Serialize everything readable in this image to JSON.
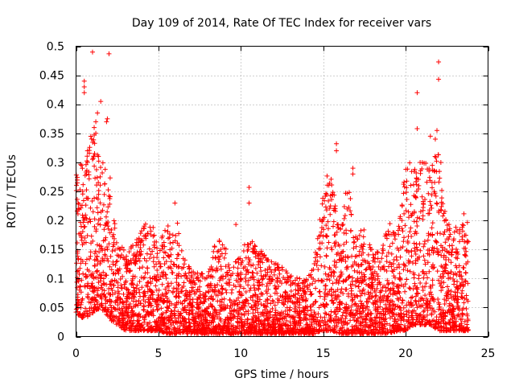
{
  "chart_data": {
    "type": "scatter",
    "title": "Day 109 of 2014, Rate Of TEC Index for receiver vars",
    "xlabel": "GPS time / hours",
    "ylabel": "ROTI / TECUs",
    "xlim": [
      0,
      25
    ],
    "ylim": [
      0,
      0.5
    ],
    "x_ticks": [
      0,
      5,
      10,
      15,
      20,
      25
    ],
    "y_ticks": [
      0,
      0.05,
      0.1,
      0.15,
      0.2,
      0.25,
      0.3,
      0.35,
      0.4,
      0.45,
      0.5
    ],
    "x_tick_labels": [
      "0",
      "5",
      "10",
      "15",
      "20",
      "25"
    ],
    "y_tick_labels": [
      "0",
      "0.05",
      "0.1",
      "0.15",
      "0.2",
      "0.25",
      "0.3",
      "0.35",
      "0.4",
      "0.45",
      "0.5"
    ],
    "grid": true,
    "marker": "+",
    "color": "#ff0000",
    "series": [
      {
        "name": "ROTI",
        "x_range": [
          0,
          23.8
        ],
        "envelope_note": "dense cloud of points; max envelope by hour",
        "envelope_hours": [
          0,
          0.5,
          1,
          1.5,
          2,
          2.5,
          3,
          3.5,
          4,
          4.5,
          5,
          5.5,
          6,
          6.5,
          7,
          7.5,
          8,
          8.5,
          9,
          9.5,
          10,
          10.5,
          11,
          11.5,
          12,
          12.5,
          13,
          13.5,
          14,
          14.5,
          15,
          15.5,
          16,
          16.5,
          17,
          17.5,
          18,
          18.5,
          19,
          19.5,
          20,
          20.5,
          21,
          21.5,
          22,
          22.5,
          23,
          23.5,
          23.8
        ],
        "envelope_max": [
          0.28,
          0.32,
          0.36,
          0.3,
          0.3,
          0.16,
          0.15,
          0.16,
          0.19,
          0.2,
          0.17,
          0.2,
          0.22,
          0.14,
          0.12,
          0.11,
          0.11,
          0.17,
          0.16,
          0.12,
          0.15,
          0.17,
          0.16,
          0.14,
          0.13,
          0.12,
          0.11,
          0.1,
          0.1,
          0.14,
          0.26,
          0.3,
          0.2,
          0.27,
          0.17,
          0.2,
          0.15,
          0.15,
          0.2,
          0.17,
          0.3,
          0.3,
          0.3,
          0.3,
          0.34,
          0.2,
          0.19,
          0.22,
          0.2
        ],
        "envelope_min": [
          0.04,
          0.03,
          0.04,
          0.05,
          0.03,
          0.02,
          0.01,
          0.01,
          0.01,
          0.01,
          0.01,
          0.005,
          0.005,
          0.005,
          0.005,
          0.005,
          0.005,
          0.005,
          0.005,
          0.005,
          0.005,
          0.005,
          0.005,
          0.005,
          0.005,
          0.005,
          0.005,
          0.005,
          0.005,
          0.005,
          0.01,
          0.01,
          0.005,
          0.005,
          0.005,
          0.005,
          0.005,
          0.005,
          0.005,
          0.01,
          0.01,
          0.02,
          0.02,
          0.02,
          0.01,
          0.01,
          0.01,
          0.01,
          0.01
        ],
        "outliers": [
          {
            "x": 0.5,
            "y": 0.44
          },
          {
            "x": 0.5,
            "y": 0.43
          },
          {
            "x": 0.5,
            "y": 0.42
          },
          {
            "x": 1.0,
            "y": 0.49
          },
          {
            "x": 2.0,
            "y": 0.487
          },
          {
            "x": 1.5,
            "y": 0.405
          },
          {
            "x": 1.3,
            "y": 0.385
          },
          {
            "x": 1.9,
            "y": 0.375
          },
          {
            "x": 1.85,
            "y": 0.37
          },
          {
            "x": 1.2,
            "y": 0.37
          },
          {
            "x": 1.1,
            "y": 0.36
          },
          {
            "x": 1.2,
            "y": 0.35
          },
          {
            "x": 10.5,
            "y": 0.257
          },
          {
            "x": 10.5,
            "y": 0.23
          },
          {
            "x": 6.0,
            "y": 0.23
          },
          {
            "x": 9.7,
            "y": 0.193
          },
          {
            "x": 20.7,
            "y": 0.42
          },
          {
            "x": 20.7,
            "y": 0.358
          },
          {
            "x": 22.0,
            "y": 0.473
          },
          {
            "x": 22.0,
            "y": 0.443
          },
          {
            "x": 21.9,
            "y": 0.355
          },
          {
            "x": 21.5,
            "y": 0.345
          },
          {
            "x": 21.8,
            "y": 0.34
          },
          {
            "x": 15.8,
            "y": 0.332
          },
          {
            "x": 15.8,
            "y": 0.32
          },
          {
            "x": 16.8,
            "y": 0.29
          },
          {
            "x": 16.8,
            "y": 0.28
          }
        ]
      }
    ]
  }
}
